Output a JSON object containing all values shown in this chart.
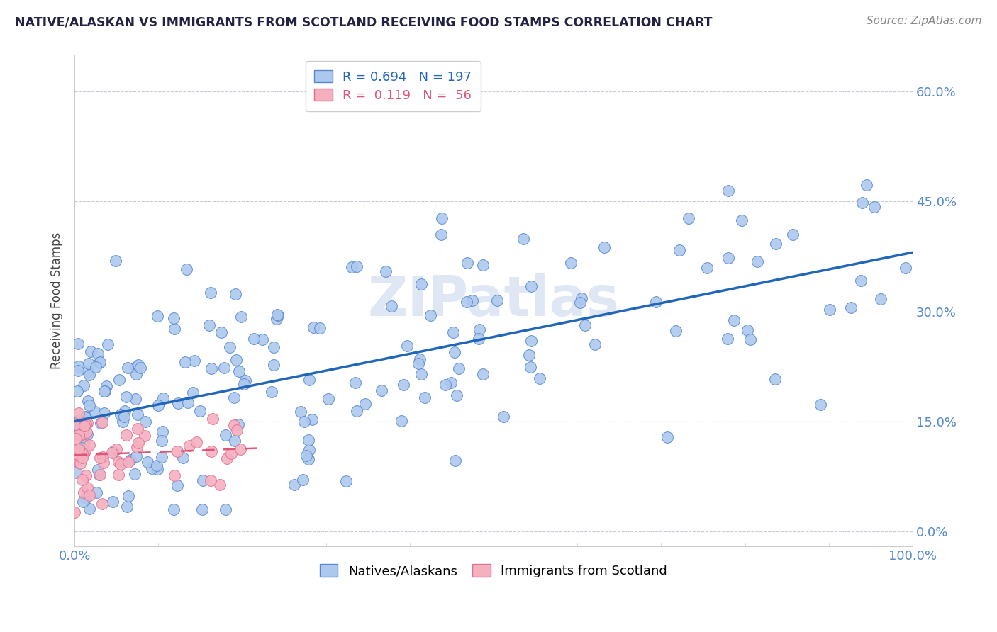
{
  "title": "NATIVE/ALASKAN VS IMMIGRANTS FROM SCOTLAND RECEIVING FOOD STAMPS CORRELATION CHART",
  "source": "Source: ZipAtlas.com",
  "ylabel": "Receiving Food Stamps",
  "xlim": [
    0,
    100
  ],
  "ylim": [
    -2,
    65
  ],
  "ytick_vals": [
    0,
    15,
    30,
    45,
    60
  ],
  "ytick_labels": [
    "0.0%",
    "15.0%",
    "30.0%",
    "45.0%",
    "60.0%"
  ],
  "xtick_vals": [
    0,
    100
  ],
  "xtick_labels": [
    "0.0%",
    "100.0%"
  ],
  "blue_fill": "#adc8ee",
  "blue_edge": "#5588cc",
  "blue_line": "#2266bb",
  "pink_fill": "#f5b0c0",
  "pink_edge": "#e07090",
  "pink_line": "#dd5577",
  "R_blue": 0.694,
  "N_blue": 197,
  "R_pink": 0.119,
  "N_pink": 56,
  "watermark": "ZIPatlas",
  "title_color": "#222244",
  "background_color": "#ffffff",
  "grid_color": "#bbbbcc",
  "blue_trend_start_y": 15,
  "blue_trend_end_y": 35,
  "pink_trend_start_y": 12,
  "pink_trend_end_y": 14
}
